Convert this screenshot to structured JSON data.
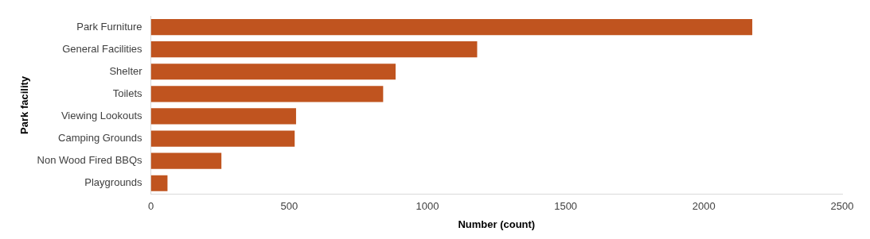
{
  "chart_data": {
    "type": "bar",
    "orientation": "horizontal",
    "categories": [
      "Park Furniture",
      "General Facilities",
      "Shelter",
      "Toilets",
      "Viewing Lookouts",
      "Camping Grounds",
      "Non Wood Fired BBQs",
      "Playgrounds"
    ],
    "values": [
      2175,
      1180,
      885,
      840,
      525,
      520,
      255,
      60
    ],
    "color": "#c0541f",
    "xlabel": "Number (count)",
    "ylabel": "Park facility",
    "xlim": [
      0,
      2500
    ],
    "xticks": [
      0,
      500,
      1000,
      1500,
      2000,
      2500
    ],
    "grid": false
  }
}
